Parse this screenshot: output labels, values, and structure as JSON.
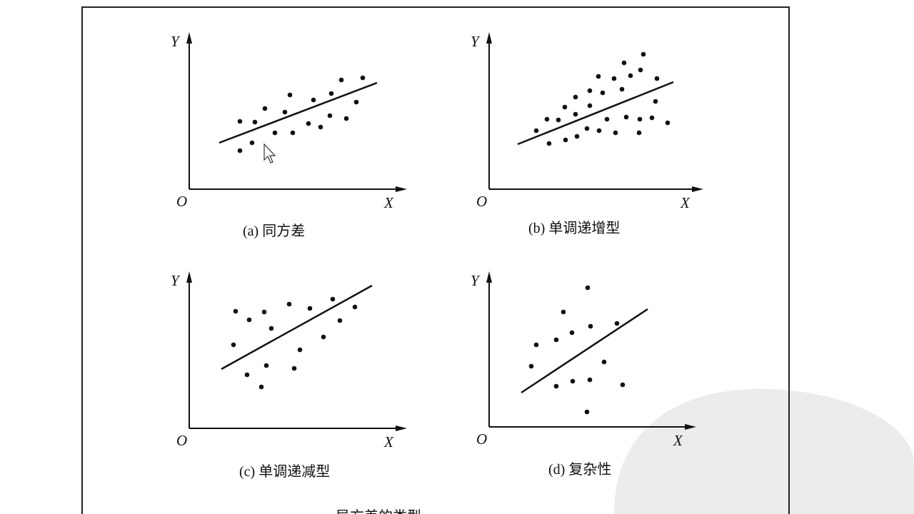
{
  "axes": {
    "y": "Y",
    "origin": "O",
    "x": "X"
  },
  "panels": [
    {
      "caption": "(a) 同方差"
    },
    {
      "caption": "(b) 单调递增型"
    },
    {
      "caption": "(c) 单调递减型"
    },
    {
      "caption": "(d) 复杂性"
    }
  ],
  "figure_caption": "异方差的类型"
}
